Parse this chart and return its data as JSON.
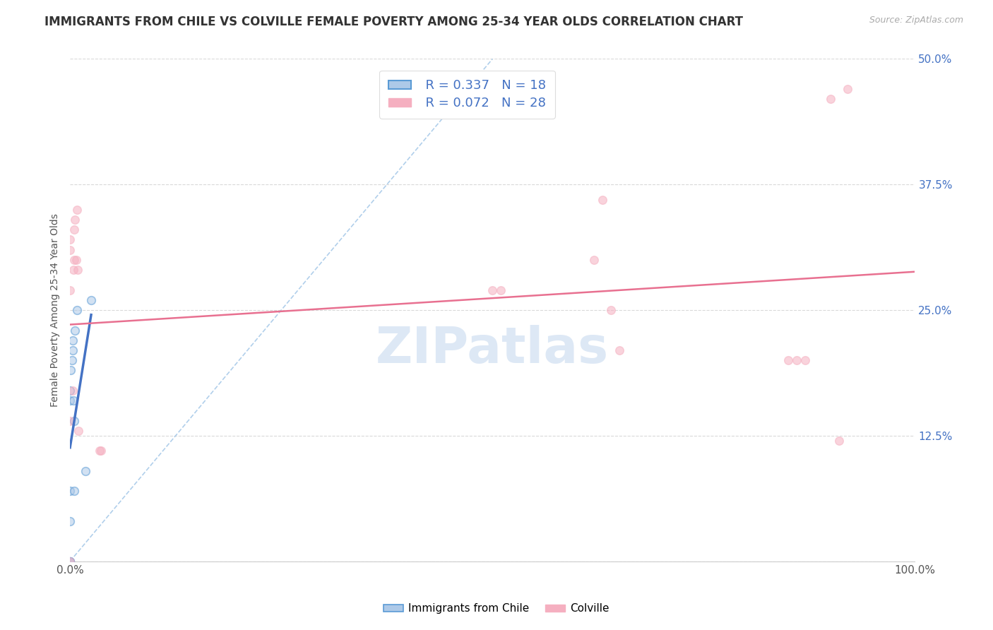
{
  "title": "IMMIGRANTS FROM CHILE VS COLVILLE FEMALE POVERTY AMONG 25-34 YEAR OLDS CORRELATION CHART",
  "source": "Source: ZipAtlas.com",
  "ylabel": "Female Poverty Among 25-34 Year Olds",
  "xlim": [
    0,
    1.0
  ],
  "ylim": [
    0,
    0.5
  ],
  "xticks": [
    0.0,
    0.125,
    0.25,
    0.375,
    0.5,
    0.625,
    0.75,
    0.875,
    1.0
  ],
  "xticklabels": [
    "0.0%",
    "",
    "",
    "",
    "",
    "",
    "",
    "",
    "100.0%"
  ],
  "yticks": [
    0.0,
    0.125,
    0.25,
    0.375,
    0.5
  ],
  "yticklabels": [
    "",
    "12.5%",
    "25.0%",
    "37.5%",
    "50.0%"
  ],
  "legend_r_chile": "R = 0.337",
  "legend_n_chile": "N = 18",
  "legend_r_colville": "R = 0.072",
  "legend_n_colville": "N = 28",
  "chile_color": "#adc9e8",
  "colville_color": "#f5afc0",
  "chile_edge_color": "#5b9bd5",
  "colville_edge_color": "#f5afc0",
  "chile_line_color": "#4472c4",
  "colville_line_color": "#e87090",
  "diagonal_color": "#9dc3e6",
  "grid_color": "#d9d9d9",
  "background_color": "#ffffff",
  "title_fontsize": 12,
  "axis_label_fontsize": 10,
  "tick_fontsize": 11,
  "scatter_size": 70,
  "scatter_alpha": 0.55,
  "chile_x": [
    0.0,
    0.0,
    0.0,
    0.0,
    0.0,
    0.0,
    0.0,
    0.001,
    0.002,
    0.003,
    0.003,
    0.004,
    0.005,
    0.005,
    0.006,
    0.008,
    0.018,
    0.025
  ],
  "chile_y": [
    0.0,
    0.0,
    0.0,
    0.04,
    0.07,
    0.16,
    0.17,
    0.19,
    0.2,
    0.21,
    0.22,
    0.16,
    0.07,
    0.14,
    0.23,
    0.25,
    0.09,
    0.26
  ],
  "colville_x": [
    0.0,
    0.0,
    0.0,
    0.0,
    0.0,
    0.003,
    0.004,
    0.005,
    0.005,
    0.006,
    0.007,
    0.008,
    0.009,
    0.01,
    0.035,
    0.037,
    0.5,
    0.51,
    0.62,
    0.63,
    0.64,
    0.65,
    0.85,
    0.86,
    0.87,
    0.9,
    0.91,
    0.92
  ],
  "colville_y": [
    0.0,
    0.14,
    0.27,
    0.31,
    0.32,
    0.17,
    0.29,
    0.3,
    0.33,
    0.34,
    0.3,
    0.35,
    0.29,
    0.13,
    0.11,
    0.11,
    0.27,
    0.27,
    0.3,
    0.36,
    0.25,
    0.21,
    0.2,
    0.2,
    0.2,
    0.46,
    0.12,
    0.47
  ],
  "watermark": "ZIPatlas",
  "watermark_color": "#dde8f5",
  "watermark_fontsize": 52
}
